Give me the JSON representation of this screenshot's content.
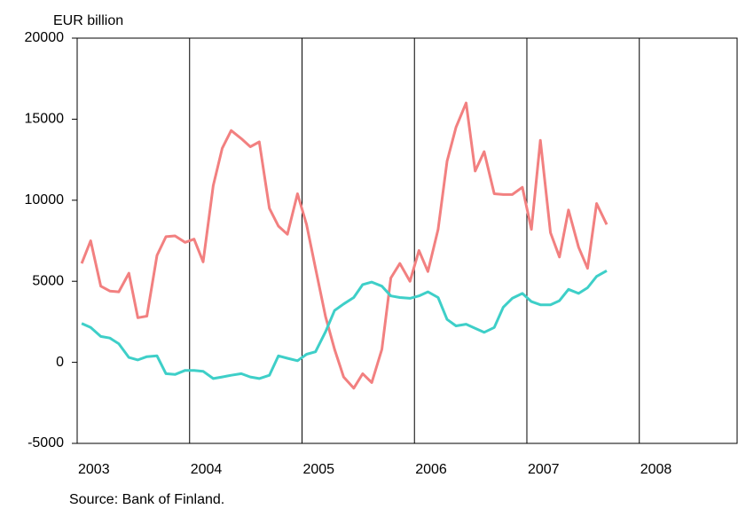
{
  "chart_data": {
    "type": "line",
    "y_label": "EUR billion",
    "source": "Source: Bank of Finland.",
    "x": [
      2003.04,
      2003.12,
      2003.21,
      2003.29,
      2003.37,
      2003.46,
      2003.54,
      2003.62,
      2003.71,
      2003.79,
      2003.87,
      2003.96,
      2004.04,
      2004.12,
      2004.21,
      2004.29,
      2004.37,
      2004.46,
      2004.54,
      2004.62,
      2004.71,
      2004.79,
      2004.87,
      2004.96,
      2005.04,
      2005.12,
      2005.21,
      2005.29,
      2005.37,
      2005.46,
      2005.54,
      2005.62,
      2005.71,
      2005.79,
      2005.87,
      2005.96,
      2006.04,
      2006.12,
      2006.21,
      2006.29,
      2006.37,
      2006.46,
      2006.54,
      2006.62,
      2006.71,
      2006.79,
      2006.87,
      2006.96,
      2007.04,
      2007.12,
      2007.21,
      2007.29,
      2007.37,
      2007.46,
      2007.54,
      2007.62,
      2007.71
    ],
    "series": [
      {
        "color": "#f28080",
        "values": [
          6100,
          7500,
          4700,
          4400,
          4350,
          5500,
          2750,
          2850,
          6600,
          7750,
          7800,
          7400,
          7600,
          6200,
          10900,
          13200,
          14300,
          13800,
          13300,
          13600,
          9500,
          8400,
          7900,
          10400,
          8500,
          5800,
          2800,
          800,
          -900,
          -1600,
          -700,
          -1250,
          800,
          5200,
          6100,
          5000,
          6900,
          5600,
          8200,
          12400,
          14500,
          16000,
          11800,
          13000,
          10400,
          10350,
          10350,
          10800,
          8200,
          13700,
          8000,
          6500,
          9400,
          7100,
          5800,
          9800,
          8500
        ]
      },
      {
        "color": "#3ecfc8",
        "values": [
          2400,
          2150,
          1600,
          1500,
          1150,
          300,
          150,
          350,
          400,
          -700,
          -750,
          -500,
          -500,
          -550,
          -1000,
          -900,
          -800,
          -700,
          -900,
          -1000,
          -800,
          400,
          250,
          100,
          500,
          650,
          1900,
          3200,
          3600,
          4000,
          4800,
          4950,
          4700,
          4100,
          4000,
          3950,
          4100,
          4350,
          4000,
          2650,
          2250,
          2350,
          2100,
          1850,
          2150,
          3400,
          3950,
          4250,
          3750,
          3550,
          3550,
          3800,
          4500,
          4250,
          4600,
          5300,
          5650
        ]
      }
    ],
    "xlim": [
      2003,
      2008.87
    ],
    "xticks": [
      2003,
      2004,
      2005,
      2006,
      2007,
      2008
    ],
    "ylim": [
      -5000,
      20000
    ],
    "yticks": [
      -5000,
      0,
      5000,
      10000,
      15000,
      20000
    ],
    "grid": "x"
  }
}
